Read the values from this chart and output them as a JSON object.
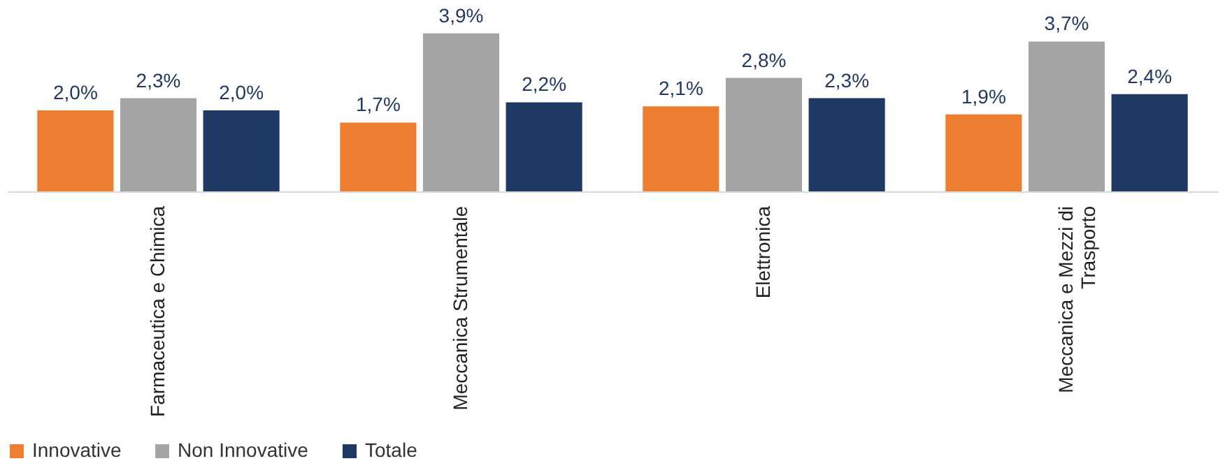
{
  "chart_data": {
    "type": "bar",
    "categories": [
      "Farmaceutica e Chimica",
      "Meccanica Strumentale",
      "Elettronica",
      "Meccanica e Mezzi di Trasporto"
    ],
    "series": [
      {
        "name": "Innovative",
        "color": "#ed7d31",
        "values": [
          2.0,
          1.7,
          2.1,
          1.9
        ],
        "value_labels": [
          "2,0%",
          "1,7%",
          "2,1%",
          "1,9%"
        ]
      },
      {
        "name": "Non Innovative",
        "color": "#a5a5a5",
        "values": [
          2.3,
          3.9,
          2.8,
          3.7
        ],
        "value_labels": [
          "2,3%",
          "3,9%",
          "2,8%",
          "3,7%"
        ]
      },
      {
        "name": "Totale",
        "color": "#203864",
        "values": [
          2.0,
          2.2,
          2.3,
          2.4
        ],
        "value_labels": [
          "2,0%",
          "2,2%",
          "2,3%",
          "2,4%"
        ]
      }
    ],
    "legend": "bottom",
    "grid": false
  }
}
